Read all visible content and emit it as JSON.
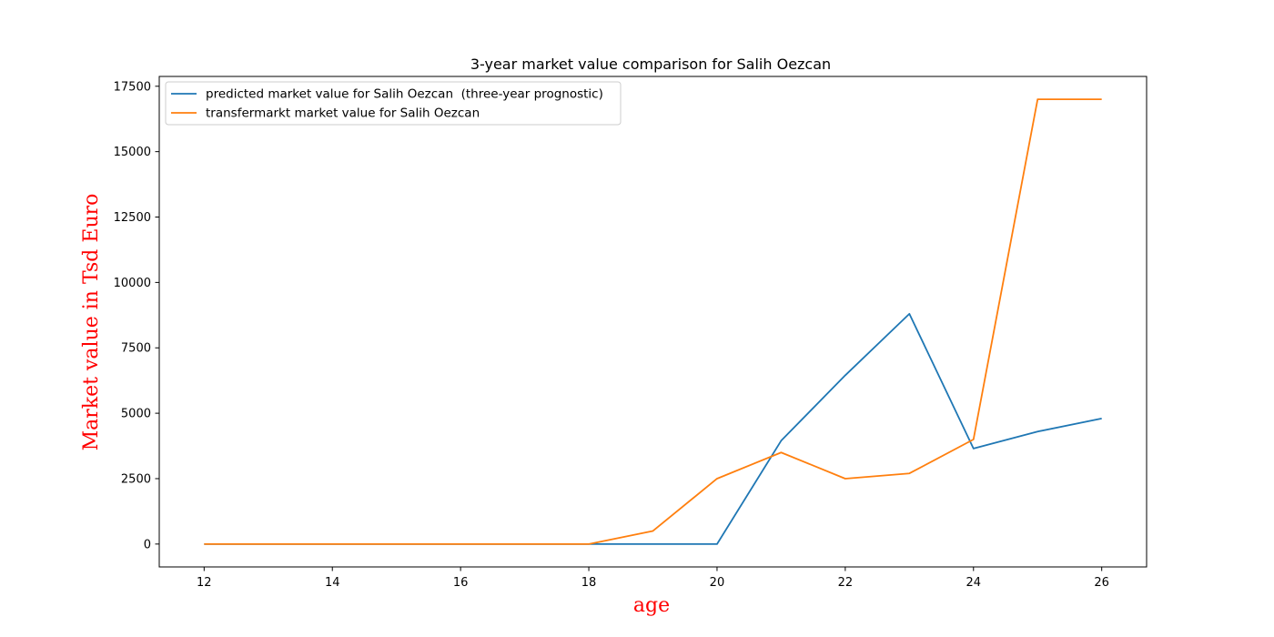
{
  "chart_data": {
    "type": "line",
    "title": "3-year market value comparison for Salih Oezcan",
    "xlabel": "age",
    "ylabel": "Market value in Tsd Euro",
    "xlim": [
      11.3,
      26.7
    ],
    "ylim": [
      -875,
      17875
    ],
    "xticks": [
      12,
      14,
      16,
      18,
      20,
      22,
      24,
      26
    ],
    "yticks": [
      0,
      2500,
      5000,
      7500,
      10000,
      12500,
      15000,
      17500
    ],
    "grid": false,
    "legend_position": "top-left",
    "x": [
      12,
      13,
      14,
      15,
      16,
      17,
      18,
      19,
      20,
      21,
      22,
      23,
      24,
      25,
      26
    ],
    "series": [
      {
        "name": "predicted market value for Salih Oezcan  (three-year prognostic)",
        "color": "#1f77b4",
        "values": [
          0,
          0,
          0,
          0,
          0,
          0,
          0,
          0,
          0,
          3950,
          6450,
          8800,
          3650,
          4300,
          4800
        ]
      },
      {
        "name": "transfermarkt market value for Salih Oezcan",
        "color": "#ff7f0e",
        "values": [
          0,
          0,
          0,
          0,
          0,
          0,
          0,
          500,
          2500,
          3500,
          2500,
          2700,
          4000,
          17000,
          17000
        ]
      }
    ]
  }
}
